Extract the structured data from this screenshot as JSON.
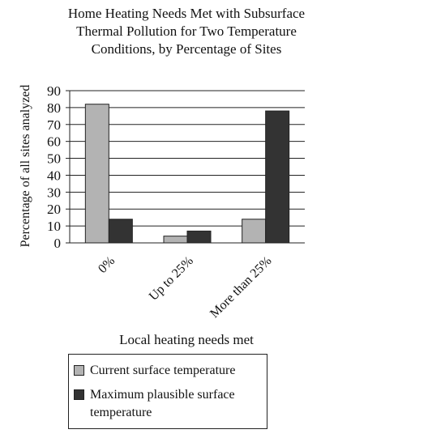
{
  "chart_data": {
    "type": "bar",
    "title_lines": [
      "Home Heating Needs Met with Subsurface",
      "Thermal Pollution for Two Temperature",
      "Conditions, by Percentage of Sites"
    ],
    "xlabel": "Local heating needs met",
    "ylabel": "Percentage of all sites analyzed",
    "categories": [
      "0%",
      "Up to 25%",
      "More than 25%"
    ],
    "series": [
      {
        "name": "Current surface temperature",
        "values": [
          82,
          4,
          14
        ],
        "color": "#b3b3b3"
      },
      {
        "name": "Maximum plausible surface temperature",
        "values": [
          14,
          7,
          78
        ],
        "color": "#333333"
      }
    ],
    "ylim": [
      0,
      90
    ],
    "yticks": [
      0,
      10,
      20,
      30,
      40,
      50,
      60,
      70,
      80,
      90
    ],
    "grid": true,
    "legend_position": "bottom"
  }
}
